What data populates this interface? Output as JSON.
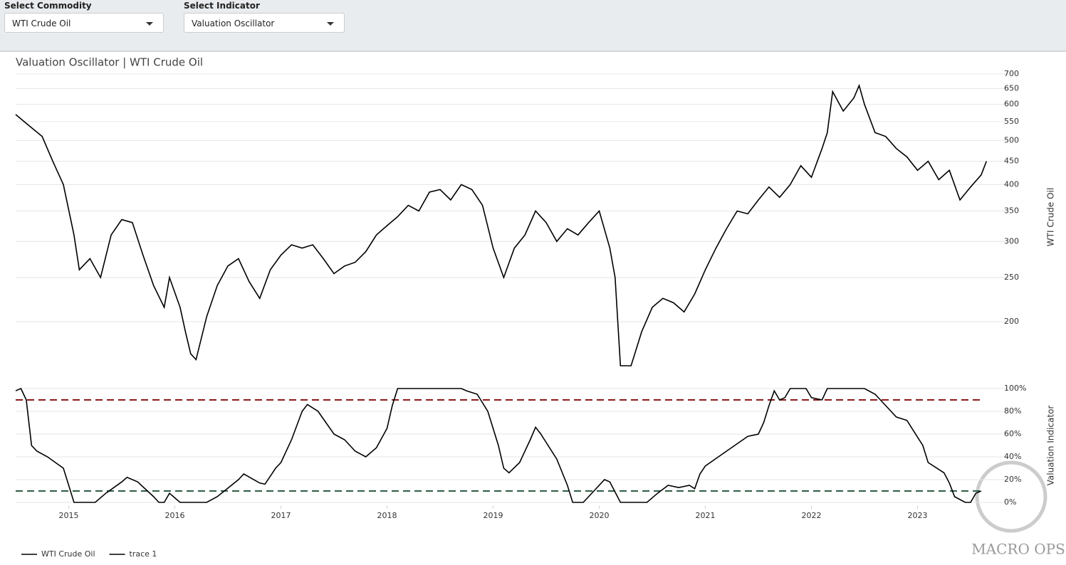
{
  "controls": [
    {
      "label": "Select Commodity",
      "value": "WTI Crude Oil"
    },
    {
      "label": "Select Indicator",
      "value": "Valuation Oscillator"
    }
  ],
  "logo": "MACRO OPS",
  "chart_data": [
    {
      "type": "line",
      "title": "Valuation Oscillator | WTI Crude Oil",
      "y_label": "WTI Crude Oil",
      "log_scale": true,
      "grid": true,
      "xlim": [
        2014.5,
        2023.86
      ],
      "ylim": [
        160,
        720
      ],
      "yticks": [
        200,
        250,
        300,
        350,
        400,
        450,
        500,
        550,
        600,
        650,
        700
      ],
      "series": [
        {
          "name": "WTI Crude Oil",
          "color": "#000000",
          "x": [
            2014.5,
            2014.6,
            2014.75,
            2014.85,
            2014.95,
            2015.05,
            2015.1,
            2015.2,
            2015.3,
            2015.4,
            2015.5,
            2015.6,
            2015.7,
            2015.8,
            2015.9,
            2015.95,
            2016.05,
            2016.1,
            2016.15,
            2016.2,
            2016.3,
            2016.4,
            2016.5,
            2016.6,
            2016.7,
            2016.8,
            2016.9,
            2017.0,
            2017.1,
            2017.2,
            2017.3,
            2017.4,
            2017.5,
            2017.6,
            2017.7,
            2017.8,
            2017.9,
            2018.0,
            2018.1,
            2018.2,
            2018.3,
            2018.4,
            2018.5,
            2018.6,
            2018.7,
            2018.8,
            2018.9,
            2019.0,
            2019.1,
            2019.2,
            2019.3,
            2019.4,
            2019.5,
            2019.6,
            2019.7,
            2019.8,
            2019.9,
            2020.0,
            2020.1,
            2020.15,
            2020.2,
            2020.3,
            2020.4,
            2020.5,
            2020.6,
            2020.7,
            2020.8,
            2020.9,
            2021.0,
            2021.1,
            2021.2,
            2021.3,
            2021.4,
            2021.5,
            2021.6,
            2021.7,
            2021.8,
            2021.9,
            2022.0,
            2022.1,
            2022.15,
            2022.2,
            2022.3,
            2022.4,
            2022.45,
            2022.5,
            2022.6,
            2022.7,
            2022.8,
            2022.9,
            2023.0,
            2023.1,
            2023.2,
            2023.3,
            2023.4,
            2023.5,
            2023.6,
            2023.65
          ],
          "values": [
            570,
            545,
            510,
            450,
            400,
            310,
            260,
            275,
            250,
            310,
            335,
            330,
            280,
            240,
            215,
            250,
            215,
            190,
            170,
            165,
            205,
            240,
            265,
            275,
            245,
            225,
            260,
            280,
            295,
            290,
            295,
            275,
            255,
            265,
            270,
            285,
            310,
            325,
            340,
            360,
            350,
            385,
            390,
            370,
            400,
            390,
            360,
            290,
            250,
            290,
            310,
            350,
            330,
            300,
            320,
            310,
            330,
            350,
            290,
            250,
            160,
            160,
            190,
            215,
            225,
            220,
            210,
            230,
            260,
            290,
            320,
            350,
            345,
            370,
            395,
            375,
            400,
            440,
            415,
            480,
            520,
            640,
            580,
            620,
            660,
            600,
            520,
            510,
            480,
            460,
            430,
            450,
            410,
            430,
            370,
            395,
            420,
            450
          ]
        }
      ]
    },
    {
      "type": "line",
      "y_label": "Valuation Indicator",
      "grid": true,
      "xlim": [
        2014.5,
        2023.86
      ],
      "ylim": [
        -3,
        103
      ],
      "xticks": [
        2015,
        2016,
        2017,
        2018,
        2019,
        2020,
        2021,
        2022,
        2023
      ],
      "yticks": [
        {
          "value": 0,
          "label": "0%"
        },
        {
          "value": 20,
          "label": "20%"
        },
        {
          "value": 40,
          "label": "40%"
        },
        {
          "value": 60,
          "label": "60%"
        },
        {
          "value": 80,
          "label": "80%"
        },
        {
          "value": 100,
          "label": "100%"
        }
      ],
      "thresholds": [
        {
          "value": 90,
          "color": "#8b1a1a"
        },
        {
          "value": 10,
          "color": "#2f5e44"
        }
      ],
      "series": [
        {
          "name": "trace 1",
          "color": "#000000",
          "x": [
            2014.5,
            2014.55,
            2014.6,
            2014.65,
            2014.7,
            2014.8,
            2014.95,
            2015.0,
            2015.05,
            2015.25,
            2015.35,
            2015.5,
            2015.55,
            2015.65,
            2015.8,
            2015.85,
            2015.9,
            2015.95,
            2016.0,
            2016.05,
            2016.3,
            2016.4,
            2016.6,
            2016.65,
            2016.8,
            2016.85,
            2016.95,
            2017.0,
            2017.1,
            2017.2,
            2017.25,
            2017.35,
            2017.5,
            2017.6,
            2017.7,
            2017.8,
            2017.9,
            2018.0,
            2018.05,
            2018.1,
            2018.3,
            2018.7,
            2018.75,
            2018.85,
            2018.95,
            2019.05,
            2019.1,
            2019.15,
            2019.25,
            2019.35,
            2019.4,
            2019.45,
            2019.6,
            2019.7,
            2019.75,
            2019.85,
            2019.95,
            2020.05,
            2020.1,
            2020.2,
            2020.45,
            2020.55,
            2020.65,
            2020.75,
            2020.85,
            2020.9,
            2020.95,
            2021.0,
            2021.2,
            2021.4,
            2021.5,
            2021.55,
            2021.6,
            2021.65,
            2021.7,
            2021.75,
            2021.8,
            2021.95,
            2022.0,
            2022.1,
            2022.15,
            2022.5,
            2022.6,
            2022.7,
            2022.8,
            2022.9,
            2023.05,
            2023.1,
            2023.25,
            2023.3,
            2023.35,
            2023.45,
            2023.5,
            2023.55,
            2023.6
          ],
          "values": [
            98,
            100,
            90,
            50,
            45,
            40,
            30,
            15,
            0,
            0,
            8,
            18,
            22,
            18,
            5,
            0,
            0,
            8,
            4,
            0,
            0,
            5,
            20,
            25,
            17,
            16,
            30,
            35,
            55,
            80,
            86,
            80,
            60,
            55,
            45,
            40,
            48,
            65,
            85,
            100,
            100,
            100,
            98,
            95,
            80,
            50,
            30,
            26,
            35,
            55,
            66,
            60,
            38,
            15,
            0,
            0,
            10,
            20,
            18,
            0,
            0,
            8,
            15,
            13,
            15,
            12,
            25,
            32,
            45,
            58,
            60,
            70,
            85,
            98,
            90,
            92,
            100,
            100,
            92,
            90,
            100,
            100,
            95,
            85,
            75,
            72,
            50,
            35,
            26,
            17,
            5,
            0,
            0,
            8,
            10
          ]
        }
      ]
    }
  ]
}
